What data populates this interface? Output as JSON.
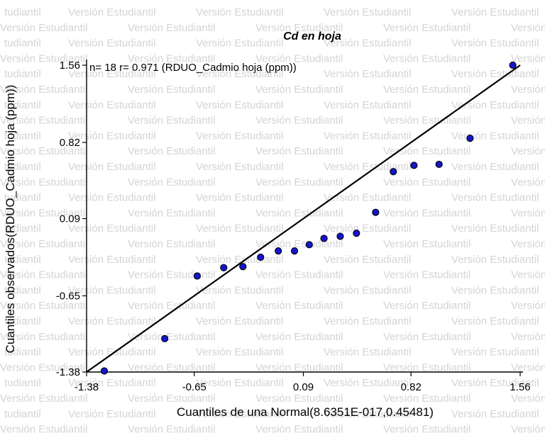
{
  "watermark": {
    "text": "Versión Estudiantil",
    "text_alt": "tudiantil"
  },
  "chart_data": {
    "type": "scatter",
    "title": "Cd en hoja",
    "stats_label": "n= 18 r= 0.971 (RDUO_Cadmio hoja (ppm))",
    "xlabel": "Cuantiles de una Normal(8.6351E-017,0.45481)",
    "ylabel": "Cuantiles observados(RDUO_Cadmio hoja (ppm))",
    "xlim": [
      -1.38,
      1.56
    ],
    "ylim": [
      -1.38,
      1.56
    ],
    "x_ticks": [
      -1.38,
      -0.65,
      0.09,
      0.82,
      1.56
    ],
    "x_tick_labels": [
      "-1.38",
      "-0.65",
      "0.09",
      "0.82",
      "1.56"
    ],
    "y_ticks": [
      -1.38,
      -0.65,
      0.09,
      0.82,
      1.56
    ],
    "y_tick_labels": [
      "-1.38",
      "-0.65",
      "0.09",
      "0.82",
      "1.56"
    ],
    "grid": false,
    "legend": "none",
    "point_color": "#1515c8",
    "line_color": "#000000",
    "points": [
      {
        "x": -1.26,
        "y": -1.37
      },
      {
        "x": -0.85,
        "y": -1.06
      },
      {
        "x": -0.63,
        "y": -0.46
      },
      {
        "x": -0.45,
        "y": -0.38
      },
      {
        "x": -0.32,
        "y": -0.37
      },
      {
        "x": -0.2,
        "y": -0.28
      },
      {
        "x": -0.08,
        "y": -0.22
      },
      {
        "x": 0.03,
        "y": -0.22
      },
      {
        "x": 0.13,
        "y": -0.16
      },
      {
        "x": 0.23,
        "y": -0.1
      },
      {
        "x": 0.34,
        "y": -0.08
      },
      {
        "x": 0.45,
        "y": -0.05
      },
      {
        "x": 0.58,
        "y": 0.15
      },
      {
        "x": 0.7,
        "y": 0.54
      },
      {
        "x": 0.84,
        "y": 0.6
      },
      {
        "x": 1.01,
        "y": 0.61
      },
      {
        "x": 1.22,
        "y": 0.86
      },
      {
        "x": 1.51,
        "y": 1.56
      }
    ],
    "reference_line": [
      {
        "x": -1.38,
        "y": -1.38
      },
      {
        "x": 1.56,
        "y": 1.56
      }
    ]
  }
}
